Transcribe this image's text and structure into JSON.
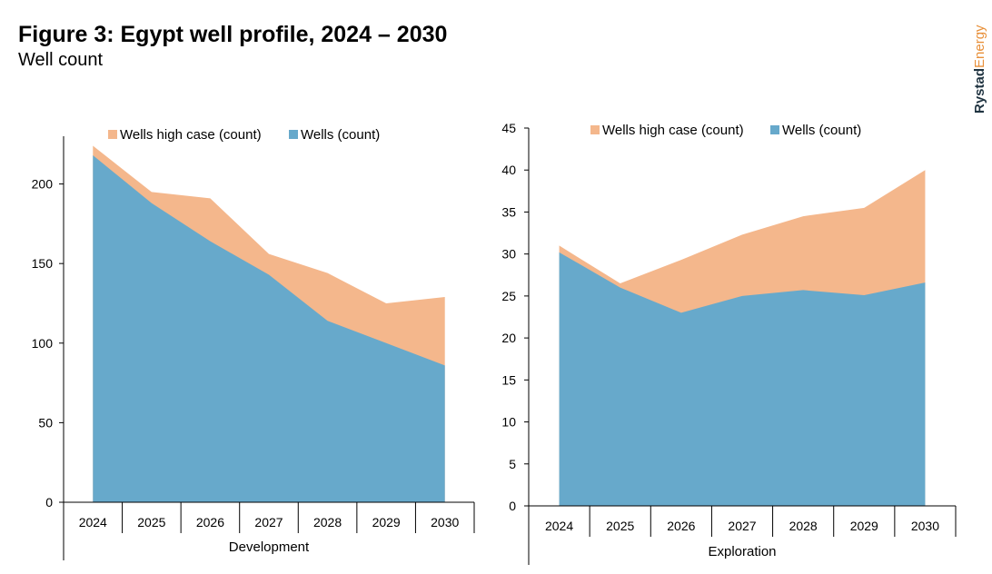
{
  "header": {
    "title": "Figure 3: Egypt well profile, 2024 – 2030",
    "subtitle": "Well count"
  },
  "logo": {
    "part1": "Rystad",
    "part2": "Energy",
    "color1": "#1f3340",
    "color2": "#e8903a"
  },
  "colors": {
    "high_case": "#f4b78c",
    "wells": "#67a9cb",
    "axis": "#000000"
  },
  "chart_data": [
    {
      "type": "area",
      "category_label": "Development",
      "x": [
        "2024",
        "2025",
        "2026",
        "2027",
        "2028",
        "2029",
        "2030"
      ],
      "ylim": [
        0,
        230
      ],
      "yticks": [
        0,
        50,
        100,
        150,
        200
      ],
      "legend": "top",
      "series": [
        {
          "name": "Wells high case (count)",
          "values": [
            224,
            195,
            191,
            156,
            144,
            125,
            129
          ]
        },
        {
          "name": "Wells (count)",
          "values": [
            218,
            188,
            164,
            143,
            114,
            100,
            86
          ]
        }
      ]
    },
    {
      "type": "area",
      "category_label": "Exploration",
      "x": [
        "2024",
        "2025",
        "2026",
        "2027",
        "2028",
        "2029",
        "2030"
      ],
      "ylim": [
        0,
        45
      ],
      "yticks": [
        0,
        5,
        10,
        15,
        20,
        25,
        30,
        35,
        40,
        45
      ],
      "legend": "top",
      "series": [
        {
          "name": "Wells high case (count)",
          "values": [
            31,
            26.5,
            29.3,
            32.3,
            34.5,
            35.5,
            40
          ]
        },
        {
          "name": "Wells (count)",
          "values": [
            30.2,
            26,
            23,
            25,
            25.7,
            25.1,
            26.6
          ]
        }
      ]
    }
  ]
}
